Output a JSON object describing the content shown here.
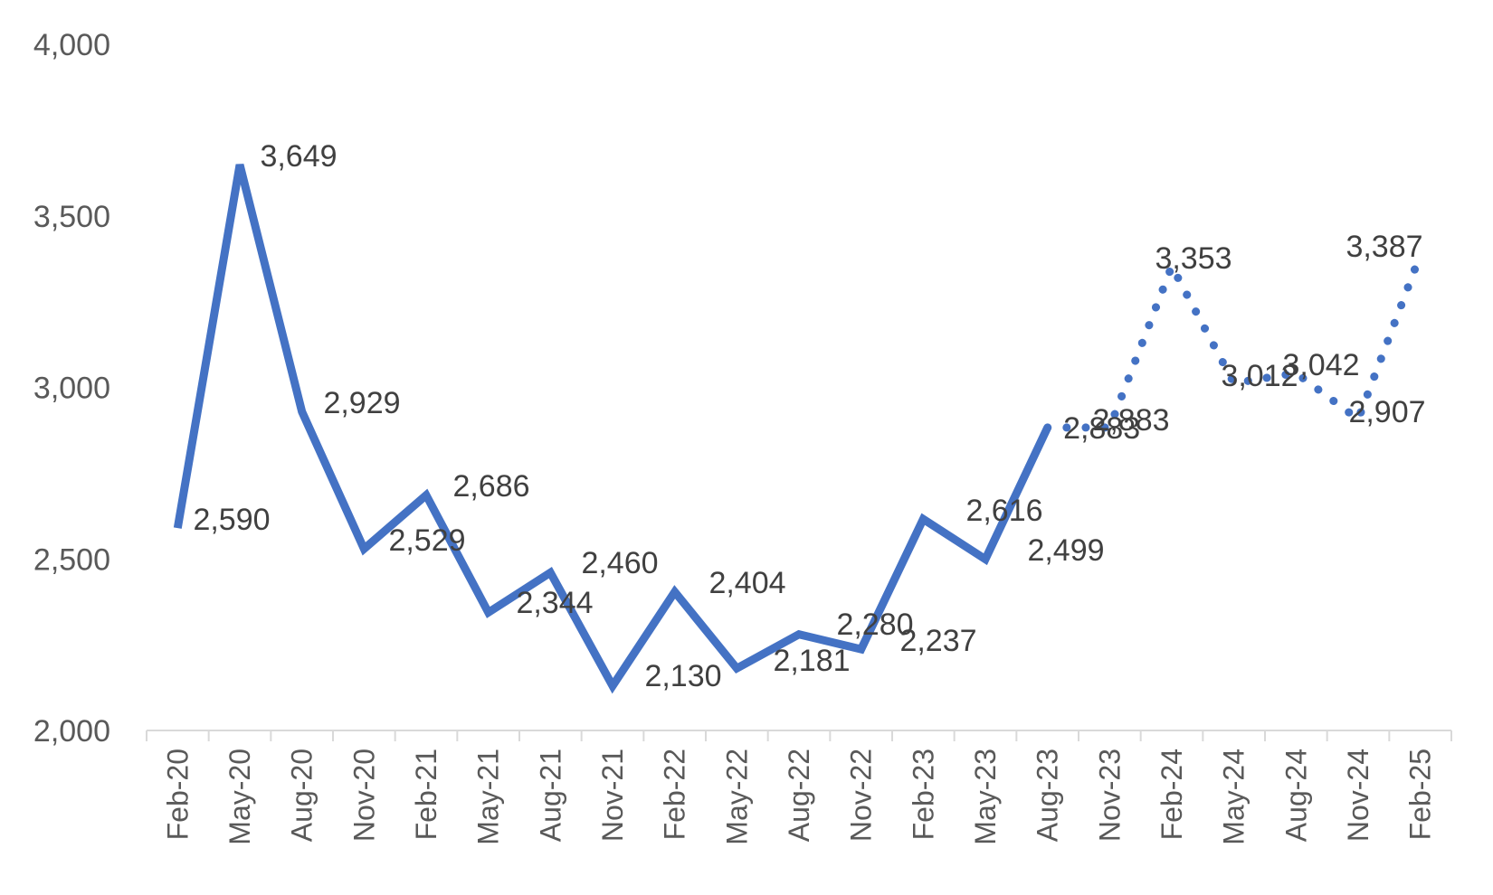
{
  "chart_data": {
    "type": "line",
    "title": "",
    "xlabel": "",
    "ylabel": "",
    "ylim": [
      2000,
      4000
    ],
    "y_ticks": [
      "2,000",
      "2,500",
      "3,000",
      "3,500",
      "4,000"
    ],
    "y_tick_values": [
      2000,
      2500,
      3000,
      3500,
      4000
    ],
    "grid": false,
    "legend": "none",
    "color": "#4472C4",
    "categories": [
      "Feb-20",
      "May-20",
      "Aug-20",
      "Nov-20",
      "Feb-21",
      "May-21",
      "Aug-21",
      "Nov-21",
      "Feb-22",
      "May-22",
      "Aug-22",
      "Nov-22",
      "Feb-23",
      "May-23",
      "Aug-23",
      "Nov-23",
      "Feb-24",
      "May-24",
      "Aug-24",
      "Nov-24",
      "Feb-25"
    ],
    "series": [
      {
        "style": "solid",
        "values": [
          2590,
          3649,
          2929,
          2529,
          2686,
          2344,
          2460,
          2130,
          2404,
          2181,
          2280,
          2237,
          2616,
          2499,
          2883,
          null,
          null,
          null,
          null,
          null,
          null
        ],
        "labels": [
          "2,590",
          "3,649",
          "2,929",
          "2,529",
          "2,686",
          "2,344",
          "2,460",
          "2,130",
          "2,404",
          "2,181",
          "2,280",
          "2,237",
          "2,616",
          "2,499",
          "2,883",
          null,
          null,
          null,
          null,
          null,
          null
        ]
      },
      {
        "style": "dotted",
        "values": [
          null,
          null,
          null,
          null,
          null,
          null,
          null,
          null,
          null,
          null,
          null,
          null,
          null,
          null,
          2883,
          2883,
          3353,
          3012,
          3042,
          2907,
          3387
        ],
        "labels": [
          null,
          null,
          null,
          null,
          null,
          null,
          null,
          null,
          null,
          null,
          null,
          null,
          null,
          null,
          null,
          "2,883",
          "3,353",
          "3,012",
          "3,042",
          "2,907",
          "3,387"
        ]
      }
    ]
  }
}
